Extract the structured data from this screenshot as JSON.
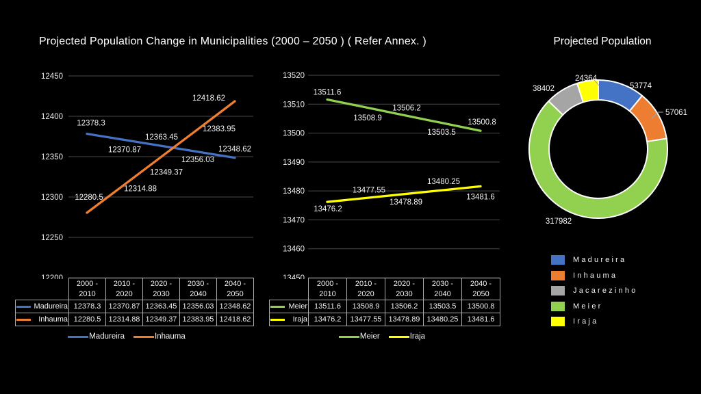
{
  "slide": {
    "title": "Projected Population Change in Municipalities (2000 – 2050 ) ( Refer Annex. )"
  },
  "chart_data": [
    {
      "id": "madureira-inhauma-line",
      "type": "line",
      "categories": [
        "2000 - 2010",
        "2010 - 2020",
        "2020 - 2030",
        "2030 - 2040",
        "2040 - 2050"
      ],
      "series": [
        {
          "name": "Madureira",
          "color": "#4472C4",
          "values": [
            12378.3,
            12370.87,
            12363.45,
            12356.03,
            12348.62
          ]
        },
        {
          "name": "Inhauma",
          "color": "#ED7D31",
          "values": [
            12280.5,
            12314.88,
            12349.37,
            12383.95,
            12418.62
          ]
        }
      ],
      "ylim": [
        12200,
        12450
      ],
      "ytick_step": 50,
      "grid": true,
      "data_labels": true,
      "data_table": true,
      "legend_position": "bottom"
    },
    {
      "id": "meier-iraja-line",
      "type": "line",
      "categories": [
        "2000 - 2010",
        "2010 - 2020",
        "2020 - 2030",
        "2030 - 2040",
        "2040 - 2050"
      ],
      "series": [
        {
          "name": "Meier",
          "color": "#92D050",
          "values": [
            13511.6,
            13508.9,
            13506.2,
            13503.5,
            13500.8
          ]
        },
        {
          "name": "Iraja",
          "color": "#FFFF00",
          "values": [
            13476.2,
            13477.55,
            13478.89,
            13480.25,
            13481.6
          ]
        }
      ],
      "ylim": [
        13450,
        13520
      ],
      "ytick_step": 10,
      "grid": true,
      "data_labels": true,
      "data_table": true,
      "legend_position": "bottom"
    },
    {
      "id": "projected-population-donut",
      "type": "pie",
      "subtype": "doughnut",
      "title": "Projected Population",
      "slices": [
        {
          "label": "Madureira",
          "value": 53774,
          "color": "#4472C4"
        },
        {
          "label": "Inhauma",
          "value": 57061,
          "color": "#ED7D31"
        },
        {
          "label": "Meier",
          "value": 317982,
          "color": "#92D050"
        },
        {
          "label": "Jacarezinho",
          "value": 38402,
          "color": "#A5A5A5"
        },
        {
          "label": "Iraja",
          "value": 24364,
          "color": "#FFFF00"
        }
      ],
      "legend": [
        {
          "label": "Madureira",
          "color": "#4472C4"
        },
        {
          "label": "Inhauma",
          "color": "#ED7D31"
        },
        {
          "label": "Jacarezinho",
          "color": "#A5A5A5"
        },
        {
          "label": "Meier",
          "color": "#92D050"
        },
        {
          "label": "Iraja",
          "color": "#FFFF00"
        }
      ],
      "legend_position": "bottom-right"
    }
  ],
  "styles": {
    "background": "#000000",
    "text_color": "#FFFFFF",
    "grid_color": "#4A4A4A",
    "table_border_color": "#ABABAB",
    "tick_label_color": "#EDEDED",
    "data_label_color": "#F2F2F2",
    "leader_line_color": "#A6A6A6",
    "slice_border_color": "#FFFFFF"
  }
}
